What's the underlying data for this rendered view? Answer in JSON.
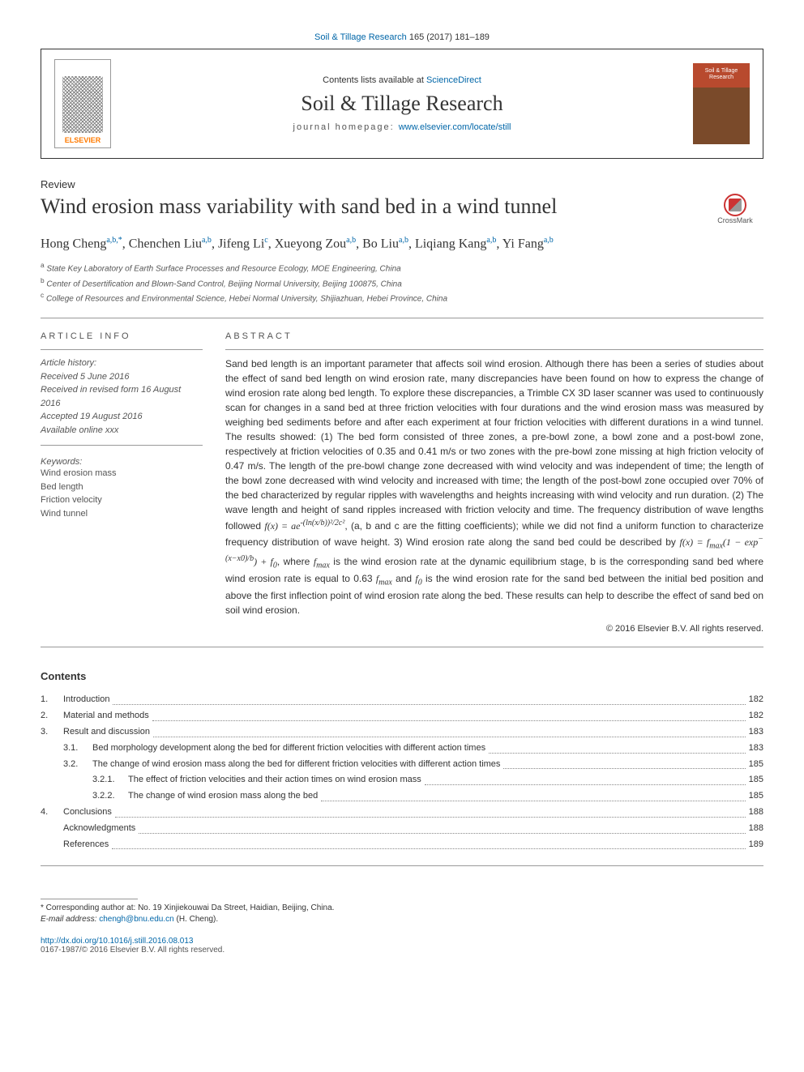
{
  "citation": {
    "journal": "Soil & Tillage Research",
    "vol_pages": "165 (2017) 181–189"
  },
  "header": {
    "contents_prefix": "Contents lists available at ",
    "contents_link": "ScienceDirect",
    "journal_name": "Soil & Tillage Research",
    "homepage_prefix": "journal homepage: ",
    "homepage_url": "www.elsevier.com/locate/still",
    "elsevier": "ELSEVIER",
    "cover_text": "Soil & Tillage Research"
  },
  "article_type": "Review",
  "title": "Wind erosion mass variability with sand bed in a wind tunnel",
  "crossmark": "CrossMark",
  "authors_html": "Hong Cheng<sup>a,b,*</sup>, Chenchen Liu<sup>a,b</sup>, Jifeng Li<sup>c</sup>, Xueyong Zou<sup>a,b</sup>, Bo Liu<sup>a,b</sup>, Liqiang Kang<sup>a,b</sup>, Yi Fang<sup>a,b</sup>",
  "affiliations": [
    {
      "sup": "a",
      "text": "State Key Laboratory of Earth Surface Processes and Resource Ecology, MOE Engineering, China"
    },
    {
      "sup": "b",
      "text": "Center of Desertification and Blown-Sand Control, Beijing Normal University, Beijing 100875, China"
    },
    {
      "sup": "c",
      "text": "College of Resources and Environmental Science, Hebei Normal University, Shijiazhuan, Hebei Province, China"
    }
  ],
  "info_label": "ARTICLE INFO",
  "abstract_label": "ABSTRACT",
  "history": {
    "label": "Article history:",
    "received": "Received 5 June 2016",
    "revised": "Received in revised form 16 August 2016",
    "accepted": "Accepted 19 August 2016",
    "online": "Available online xxx"
  },
  "keywords_label": "Keywords:",
  "keywords": [
    "Wind erosion mass",
    "Bed length",
    "Friction velocity",
    "Wind tunnel"
  ],
  "abstract": "Sand bed length is an important parameter that affects soil wind erosion. Although there has been a series of studies about the effect of sand bed length on wind erosion rate, many discrepancies have been found on how to express the change of wind erosion rate along bed length. To explore these discrepancies, a Trimble CX 3D laser scanner was used to continuously scan for changes in a sand bed at three friction velocities with four durations and the wind erosion mass was measured by weighing bed sediments before and after each experiment at four friction velocities with different durations in a wind tunnel. The results showed: (1) The bed form consisted of three zones, a pre-bowl zone, a bowl zone and a post-bowl zone, respectively at friction velocities of 0.35 and 0.41 m/s or two zones with the pre-bowl zone missing at high friction velocity of 0.47 m/s. The length of the pre-bowl change zone decreased with wind velocity and was independent of time; the length of the bowl zone decreased with wind velocity and increased with time; the length of the post-bowl zone occupied over 70% of the bed characterized by regular ripples with wavelengths and heights increasing with wind velocity and run duration. (2) The wave length and height of sand ripples increased with friction velocity and time. The frequency distribution of wave lengths followed f(x) = ae^{-(ln(x/b))^2/2c^2}, (a, b and c are the fitting coefficients); while we did not find a uniform function to characterize frequency distribution of wave height. 3) Wind erosion rate along the sand bed could be described by f(x) = f_{max}(1 - exp^{-(x - x0)/b}) + f_0, where f_{max} is the wind erosion rate at the dynamic equilibrium stage, b is the corresponding sand bed where wind erosion rate is equal to 0.63 f_{max} and f_0 is the wind erosion rate for the sand bed between the initial bed position and above the first inflection point of wind erosion rate along the bed. These results can help to describe the effect of sand bed on soil wind erosion.",
  "copyright": "© 2016 Elsevier B.V. All rights reserved.",
  "contents_heading": "Contents",
  "toc": [
    {
      "level": 1,
      "num": "1.",
      "label": "Introduction",
      "page": "182"
    },
    {
      "level": 1,
      "num": "2.",
      "label": "Material and methods",
      "page": "182"
    },
    {
      "level": 1,
      "num": "3.",
      "label": "Result and discussion",
      "page": "183"
    },
    {
      "level": 2,
      "num": "3.1.",
      "label": "Bed morphology development along the bed for different friction velocities with different action times",
      "page": "183"
    },
    {
      "level": 2,
      "num": "3.2.",
      "label": "The change of wind erosion mass along the bed for different friction velocities with different action times",
      "page": "185"
    },
    {
      "level": 3,
      "num": "3.2.1.",
      "label": "The effect of friction velocities and their action times on wind erosion mass",
      "page": "185"
    },
    {
      "level": 3,
      "num": "3.2.2.",
      "label": "The change of wind erosion mass along the bed",
      "page": "185"
    },
    {
      "level": 1,
      "num": "4.",
      "label": "Conclusions",
      "page": "188"
    },
    {
      "level": 0,
      "num": "",
      "label": "Acknowledgments",
      "page": "188"
    },
    {
      "level": 0,
      "num": "",
      "label": "References",
      "page": "189"
    }
  ],
  "footnote": {
    "corr": "* Corresponding author at: No. 19 Xinjiekouwai Da Street, Haidian, Beijing, China.",
    "email_label": "E-mail address:",
    "email": "chengh@bnu.edu.cn",
    "email_paren": "(H. Cheng)."
  },
  "doi": "http://dx.doi.org/10.1016/j.still.2016.08.013",
  "issn": "0167-1987/© 2016 Elsevier B.V. All rights reserved."
}
